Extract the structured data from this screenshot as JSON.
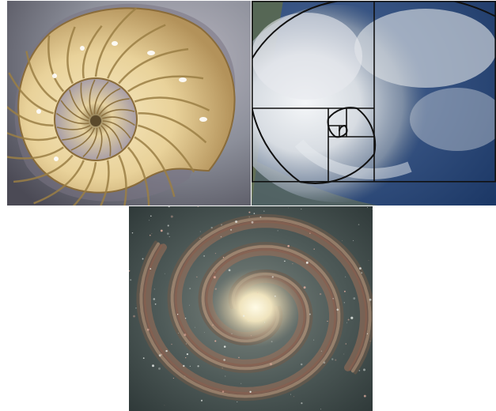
{
  "panels": [
    {
      "subject": "nautilus-shell",
      "icon": "nautilus-shell-icon"
    },
    {
      "subject": "hurricane-with-golden-spiral",
      "icon": "hurricane-spiral-icon"
    },
    {
      "subject": "spiral-galaxy",
      "icon": "spiral-galaxy-icon"
    }
  ],
  "colors": {
    "background": "#ffffff",
    "shell_light": "#f0dfae",
    "shell_dark": "#9b7f45",
    "shell_backdrop": "#8c8f9a",
    "ocean": "#2a4d80",
    "cloud": "#e8ecf0",
    "spiral_line": "#111111",
    "galaxy_space": "#3b4a4a",
    "galaxy_core": "#f3eed2",
    "galaxy_arm": "#b98a6e"
  }
}
